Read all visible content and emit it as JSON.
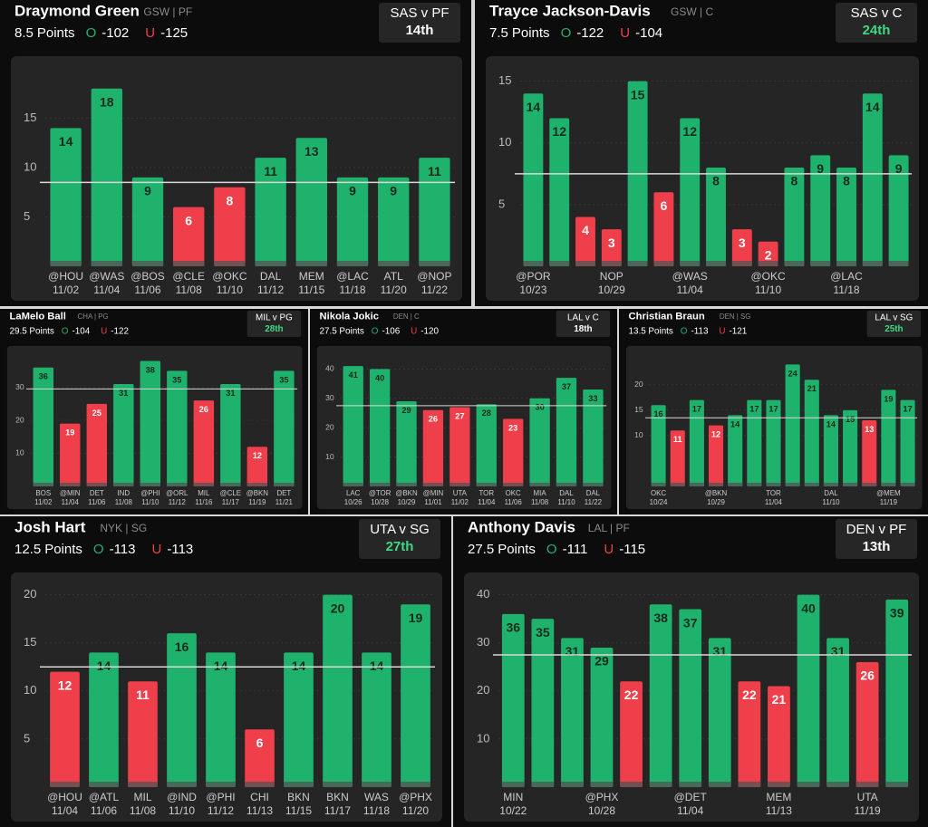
{
  "chart_data": [
    {
      "type": "bar",
      "title": "Draymond Green",
      "team": "GSW",
      "position": "PF",
      "line": 8.5,
      "line_unit": "Points",
      "over_label": "O",
      "over_odds": -102,
      "under_label": "U",
      "under_odds": -125,
      "matchup": "SAS v PF",
      "rank": "14th",
      "rank_color": "#ffffff",
      "categories": [
        "@HOU",
        "@WAS",
        "@BOS",
        "@CLE",
        "@OKC",
        "DAL",
        "MEM",
        "@LAC",
        "ATL",
        "@NOP"
      ],
      "dates": [
        "11/02",
        "11/04",
        "11/06",
        "11/08",
        "11/10",
        "11/12",
        "11/15",
        "11/18",
        "11/20",
        "11/22"
      ],
      "values": [
        14,
        18,
        9,
        6,
        8,
        11,
        13,
        9,
        9,
        11
      ],
      "ylim": [
        0,
        20
      ],
      "yticks": [
        5,
        10,
        15
      ],
      "colors": {
        "over": "#1fb26d",
        "under": "#ef3f4a"
      }
    },
    {
      "type": "bar",
      "title": "Trayce Jackson-Davis",
      "team": "GSW",
      "position": "C",
      "line": 7.5,
      "line_unit": "Points",
      "over_label": "O",
      "over_odds": -122,
      "under_label": "U",
      "under_odds": -104,
      "matchup": "SAS v C",
      "rank": "24th",
      "rank_color": "#3fd883",
      "categories": [
        "@POR",
        null,
        null,
        "NOP",
        null,
        null,
        "@WAS",
        null,
        null,
        "@OKC",
        null,
        null,
        "@LAC",
        null,
        null
      ],
      "dates": [
        "10/23",
        null,
        null,
        "10/29",
        null,
        null,
        "11/04",
        null,
        null,
        "11/10",
        null,
        null,
        "11/18",
        null,
        null
      ],
      "values": [
        14,
        12,
        4,
        3,
        15,
        6,
        12,
        8,
        3,
        2,
        8,
        9,
        8,
        14,
        9
      ],
      "ylim": [
        0,
        16
      ],
      "yticks": [
        5,
        10,
        15
      ],
      "colors": {
        "over": "#1fb26d",
        "under": "#ef3f4a"
      }
    },
    {
      "type": "bar",
      "title": "LaMelo Ball",
      "team": "CHA",
      "position": "PG",
      "line": 29.5,
      "line_unit": "Points",
      "over_label": "O",
      "over_odds": -104,
      "under_label": "U",
      "under_odds": -122,
      "matchup": "MIL v PG",
      "rank": "28th",
      "rank_color": "#3fd883",
      "categories": [
        "BOS",
        "@MIN",
        "DET",
        "IND",
        "@PHI",
        "@ORL",
        "MIL",
        "@CLE",
        "@BKN",
        "DET"
      ],
      "dates": [
        "11/02",
        "11/04",
        "11/06",
        "11/08",
        "11/10",
        "11/12",
        "11/16",
        "11/17",
        "11/19",
        "11/21"
      ],
      "values": [
        36,
        19,
        25,
        31,
        38,
        35,
        26,
        31,
        12,
        35
      ],
      "ylim": [
        0,
        40
      ],
      "yticks": [
        10,
        20,
        30
      ],
      "colors": {
        "over": "#1fb26d",
        "under": "#ef3f4a"
      }
    },
    {
      "type": "bar",
      "title": "Nikola Jokic",
      "team": "DEN",
      "position": "C",
      "line": 27.5,
      "line_unit": "Points",
      "over_label": "O",
      "over_odds": -106,
      "under_label": "U",
      "under_odds": -120,
      "matchup": "LAL v C",
      "rank": "18th",
      "rank_color": "#ffffff",
      "categories": [
        "LAC",
        "@TOR",
        "@BKN",
        "@MIN",
        "UTA",
        "TOR",
        "OKC",
        "MIA",
        "DAL",
        "DAL"
      ],
      "dates": [
        "10/26",
        "10/28",
        "10/29",
        "11/01",
        "11/02",
        "11/04",
        "11/06",
        "11/08",
        "11/10",
        "11/22"
      ],
      "values": [
        41,
        40,
        29,
        26,
        27,
        28,
        23,
        30,
        37,
        33
      ],
      "ylim": [
        0,
        45
      ],
      "yticks": [
        10,
        20,
        30,
        40
      ],
      "colors": {
        "over": "#1fb26d",
        "under": "#ef3f4a"
      }
    },
    {
      "type": "bar",
      "title": "Christian Braun",
      "team": "DEN",
      "position": "SG",
      "line": 13.5,
      "line_unit": "Points",
      "over_label": "O",
      "over_odds": -113,
      "under_label": "U",
      "under_odds": -121,
      "matchup": "LAL v SG",
      "rank": "25th",
      "rank_color": "#3fd883",
      "categories": [
        "OKC",
        null,
        null,
        "@BKN",
        null,
        null,
        "TOR",
        null,
        null,
        "DAL",
        null,
        null,
        "@MEM",
        null
      ],
      "dates": [
        "10/24",
        null,
        null,
        "10/29",
        null,
        null,
        "11/04",
        null,
        null,
        "11/10",
        null,
        null,
        "11/19",
        null
      ],
      "values": [
        16,
        11,
        17,
        12,
        14,
        17,
        17,
        24,
        21,
        14,
        15,
        13,
        19,
        17
      ],
      "ylim": [
        0,
        26
      ],
      "yticks": [
        10,
        15,
        20
      ],
      "colors": {
        "over": "#1fb26d",
        "under": "#ef3f4a"
      }
    },
    {
      "type": "bar",
      "title": "Josh Hart",
      "team": "NYK",
      "position": "SG",
      "line": 12.5,
      "line_unit": "Points",
      "over_label": "O",
      "over_odds": -113,
      "under_label": "U",
      "under_odds": -113,
      "matchup": "UTA v SG",
      "rank": "27th",
      "rank_color": "#3fd883",
      "categories": [
        "@HOU",
        "@ATL",
        "MIL",
        "@IND",
        "@PHI",
        "CHI",
        "BKN",
        "BKN",
        "WAS",
        "@PHX"
      ],
      "dates": [
        "11/04",
        "11/06",
        "11/08",
        "11/10",
        "11/12",
        "11/13",
        "11/15",
        "11/17",
        "11/18",
        "11/20"
      ],
      "values": [
        12,
        14,
        11,
        16,
        14,
        6,
        14,
        20,
        14,
        19
      ],
      "ylim": [
        0,
        21
      ],
      "yticks": [
        5,
        10,
        15,
        20
      ],
      "colors": {
        "over": "#1fb26d",
        "under": "#ef3f4a"
      }
    },
    {
      "type": "bar",
      "title": "Anthony Davis",
      "team": "LAL",
      "position": "PF",
      "line": 27.5,
      "line_unit": "Points",
      "over_label": "O",
      "over_odds": -111,
      "under_label": "U",
      "under_odds": -115,
      "matchup": "DEN v PF",
      "rank": "13th",
      "rank_color": "#ffffff",
      "categories": [
        "MIN",
        null,
        null,
        "@PHX",
        null,
        null,
        "@DET",
        null,
        null,
        "MEM",
        null,
        null,
        "UTA",
        null
      ],
      "dates": [
        "10/22",
        null,
        null,
        "10/28",
        null,
        null,
        "11/04",
        null,
        null,
        "11/13",
        null,
        null,
        "11/19",
        null
      ],
      "values": [
        36,
        35,
        31,
        29,
        22,
        38,
        37,
        31,
        22,
        21,
        40,
        31,
        26,
        39
      ],
      "ylim": [
        0,
        42
      ],
      "yticks": [
        10,
        20,
        30,
        40
      ],
      "colors": {
        "over": "#1fb26d",
        "under": "#ef3f4a"
      }
    }
  ]
}
